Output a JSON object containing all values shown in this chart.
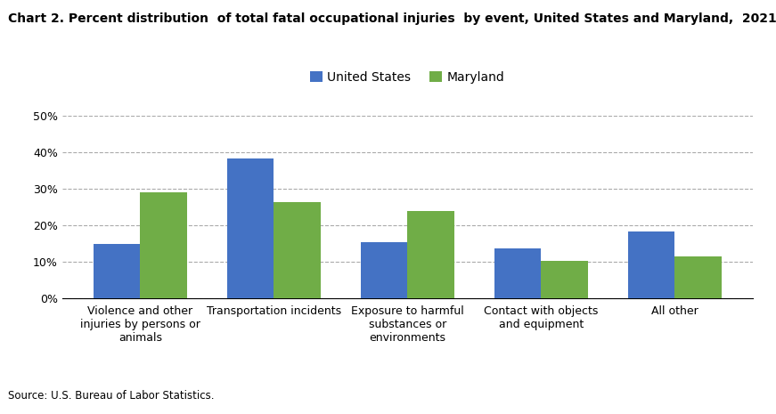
{
  "title": "Chart 2. Percent distribution  of total fatal occupational injuries  by event, United States and Maryland,  2021",
  "categories": [
    "Violence and other\ninjuries by persons or\nanimals",
    "Transportation incidents",
    "Exposure to harmful\nsubstances or\nenvironments",
    "Contact with objects\nand equipment",
    "All other"
  ],
  "us_values": [
    14.9,
    38.3,
    15.4,
    13.7,
    18.3
  ],
  "md_values": [
    29.0,
    26.3,
    24.0,
    10.2,
    11.5
  ],
  "us_color": "#4472C4",
  "md_color": "#70AD47",
  "us_label": "United States",
  "md_label": "Maryland",
  "ylim": [
    0,
    50
  ],
  "yticks": [
    0,
    10,
    20,
    30,
    40,
    50
  ],
  "source": "Source: U.S. Bureau of Labor Statistics.",
  "bar_width": 0.35,
  "figsize": [
    8.71,
    4.65
  ],
  "dpi": 100
}
